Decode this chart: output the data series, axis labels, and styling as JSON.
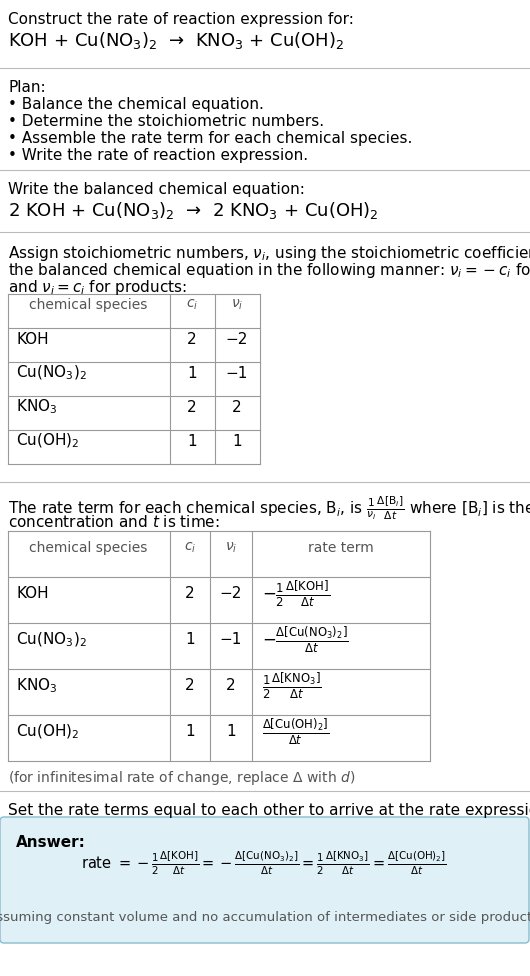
{
  "bg_color": "#ffffff",
  "text_color": "#000000",
  "gray_text": "#666666",
  "section1_title": "Construct the rate of reaction expression for:",
  "section1_eq": "KOH + Cu(NO$_3$)$_2$  →  KNO$_3$ + Cu(OH)$_2$",
  "plan_title": "Plan:",
  "plan_items": [
    "• Balance the chemical equation.",
    "• Determine the stoichiometric numbers.",
    "• Assemble the rate term for each chemical species.",
    "• Write the rate of reaction expression."
  ],
  "balanced_title": "Write the balanced chemical equation:",
  "balanced_eq": "2 KOH + Cu(NO$_3$)$_2$  →  2 KNO$_3$ + Cu(OH)$_2$",
  "assign_text1": "Assign stoichiometric numbers, $\\nu_i$, using the stoichiometric coefficients, $c_i$, from",
  "assign_text2": "the balanced chemical equation in the following manner: $\\nu_i = -c_i$ for reactants",
  "assign_text3": "and $\\nu_i = c_i$ for products:",
  "table1_headers": [
    "chemical species",
    "$c_i$",
    "$\\nu_i$"
  ],
  "table1_rows": [
    [
      "KOH",
      "2",
      "−2"
    ],
    [
      "Cu(NO$_3$)$_2$",
      "1",
      "−1"
    ],
    [
      "KNO$_3$",
      "2",
      "2"
    ],
    [
      "Cu(OH)$_2$",
      "1",
      "1"
    ]
  ],
  "rate_text1": "The rate term for each chemical species, B$_i$, is $\\frac{1}{\\nu_i}\\frac{\\Delta[\\mathrm{B}_i]}{\\Delta t}$ where [B$_i$] is the amount",
  "rate_text2": "concentration and $t$ is time:",
  "table2_headers": [
    "chemical species",
    "$c_i$",
    "$\\nu_i$",
    "rate term"
  ],
  "table2_rows_species": [
    "KOH",
    "Cu(NO$_3$)$_2$",
    "KNO$_3$",
    "Cu(OH)$_2$"
  ],
  "table2_rows_ci": [
    "2",
    "1",
    "2",
    "1"
  ],
  "table2_rows_ni": [
    "−2",
    "−1",
    "2",
    "1"
  ],
  "table2_rows_rate": [
    "$-\\frac{1}{2}\\frac{\\Delta[\\mathrm{KOH}]}{\\Delta t}$",
    "$-\\frac{\\Delta[\\mathrm{Cu(NO_3)_2}]}{\\Delta t}$",
    "$\\frac{1}{2}\\frac{\\Delta[\\mathrm{KNO_3}]}{\\Delta t}$",
    "$\\frac{\\Delta[\\mathrm{Cu(OH)_2}]}{\\Delta t}$"
  ],
  "infinitesimal_note": "(for infinitesimal rate of change, replace Δ with $d$)",
  "set_rate_text": "Set the rate terms equal to each other to arrive at the rate expression:",
  "answer_label": "Answer:",
  "answer_box_color": "#dff0f7",
  "answer_box_border": "#8bbcce",
  "rate_expr": "rate $= -\\frac{1}{2}\\frac{\\Delta[\\mathrm{KOH}]}{\\Delta t} = -\\frac{\\Delta[\\mathrm{Cu(NO_3)_2}]}{\\Delta t} = \\frac{1}{2}\\frac{\\Delta[\\mathrm{KNO_3}]}{\\Delta t} = \\frac{\\Delta[\\mathrm{Cu(OH)_2}]}{\\Delta t}$",
  "assuming_note": "(assuming constant volume and no accumulation of intermediates or side products)"
}
